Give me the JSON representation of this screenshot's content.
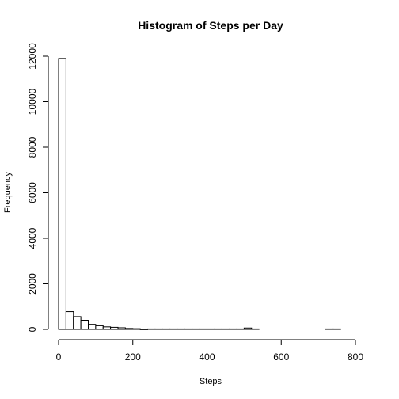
{
  "chart_data": {
    "type": "bar",
    "title": "Histogram of Steps per Day",
    "xlabel": "Steps",
    "ylabel": "Frequency",
    "bin_width": 20,
    "xlim": [
      0,
      820
    ],
    "ylim": [
      0,
      12000
    ],
    "x_ticks": [
      "0",
      "200",
      "400",
      "600",
      "800"
    ],
    "y_ticks": [
      "0",
      "2000",
      "4000",
      "6000",
      "8000",
      "10000",
      "12000"
    ],
    "bins": [
      {
        "x0": 0,
        "x1": 20,
        "count": 11900
      },
      {
        "x0": 20,
        "x1": 40,
        "count": 780
      },
      {
        "x0": 40,
        "x1": 60,
        "count": 560
      },
      {
        "x0": 60,
        "x1": 80,
        "count": 400
      },
      {
        "x0": 80,
        "x1": 100,
        "count": 220
      },
      {
        "x0": 100,
        "x1": 120,
        "count": 160
      },
      {
        "x0": 120,
        "x1": 140,
        "count": 110
      },
      {
        "x0": 140,
        "x1": 160,
        "count": 90
      },
      {
        "x0": 160,
        "x1": 180,
        "count": 70
      },
      {
        "x0": 180,
        "x1": 200,
        "count": 40
      },
      {
        "x0": 200,
        "x1": 220,
        "count": 30
      },
      {
        "x0": 220,
        "x1": 240,
        "count": 5
      },
      {
        "x0": 240,
        "x1": 260,
        "count": 20
      },
      {
        "x0": 260,
        "x1": 280,
        "count": 20
      },
      {
        "x0": 280,
        "x1": 300,
        "count": 20
      },
      {
        "x0": 300,
        "x1": 320,
        "count": 20
      },
      {
        "x0": 320,
        "x1": 340,
        "count": 20
      },
      {
        "x0": 340,
        "x1": 360,
        "count": 20
      },
      {
        "x0": 360,
        "x1": 380,
        "count": 20
      },
      {
        "x0": 380,
        "x1": 400,
        "count": 20
      },
      {
        "x0": 400,
        "x1": 420,
        "count": 20
      },
      {
        "x0": 420,
        "x1": 440,
        "count": 20
      },
      {
        "x0": 440,
        "x1": 460,
        "count": 20
      },
      {
        "x0": 460,
        "x1": 480,
        "count": 20
      },
      {
        "x0": 480,
        "x1": 500,
        "count": 20
      },
      {
        "x0": 500,
        "x1": 520,
        "count": 60
      },
      {
        "x0": 520,
        "x1": 540,
        "count": 20
      },
      {
        "x0": 720,
        "x1": 740,
        "count": 20
      },
      {
        "x0": 740,
        "x1": 760,
        "count": 20
      }
    ]
  }
}
